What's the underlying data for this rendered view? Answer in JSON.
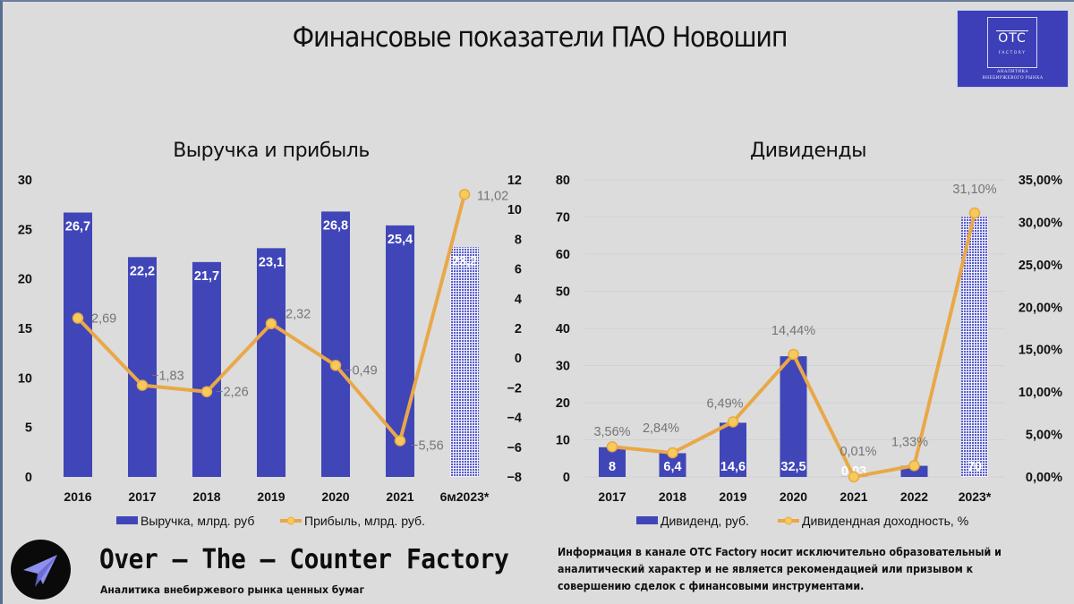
{
  "header": {
    "title": "Финансовые показатели ПАО Новошип",
    "logo": {
      "mark": "OTC",
      "word": "FACTORY",
      "subtitle_line1": "АНАЛИТИКА",
      "subtitle_line2": "ВНЕБИРЖЕВОГО РЫНКА",
      "bg_color": "#3d3fb8"
    }
  },
  "colors": {
    "bar": "#4046b8",
    "bar_forecast_pattern": "#5a5fc4",
    "line": "#e9a848",
    "marker_fill": "#f7cb5a",
    "data_label_line": "#757575",
    "data_label_bar": "#ffffff",
    "background": "#dcdcdc"
  },
  "chart_data": [
    {
      "type": "bar+line",
      "title": "Выручка и прибыль",
      "categories": [
        "2016",
        "2017",
        "2018",
        "2019",
        "2020",
        "2021",
        "6м2023*"
      ],
      "series": [
        {
          "name": "Выручка, млрд. руб",
          "type": "bar",
          "axis": "left",
          "values": [
            26.7,
            22.2,
            21.7,
            23.1,
            26.8,
            25.4,
            23.2
          ],
          "labels": [
            "26,7",
            "22,2",
            "21,7",
            "23,1",
            "26,8",
            "25,4",
            "23,2"
          ],
          "patterned_last": true
        },
        {
          "name": "Прибыль, млрд. руб.",
          "type": "line",
          "axis": "right",
          "values": [
            2.69,
            -1.83,
            -2.26,
            2.32,
            -0.49,
            -5.56,
            11.02
          ],
          "labels": [
            "2,69",
            "−1,83",
            "−2,26",
            "2,32",
            "−0,49",
            "−5,56",
            "11,02"
          ]
        }
      ],
      "y_left": {
        "min": 0,
        "max": 30,
        "ticks": [
          "0",
          "5",
          "10",
          "15",
          "20",
          "25",
          "30"
        ]
      },
      "y_right": {
        "min": -8,
        "max": 12,
        "ticks": [
          "−8",
          "−6",
          "−4",
          "−2",
          "0",
          "2",
          "4",
          "6",
          "8",
          "10",
          "12"
        ]
      },
      "legend_position": "bottom",
      "grid": false
    },
    {
      "type": "bar+line",
      "title": "Дивиденды",
      "categories": [
        "2017",
        "2018",
        "2019",
        "2020",
        "2021",
        "2022",
        "2023*"
      ],
      "series": [
        {
          "name": "Дивиденд, руб.",
          "type": "bar",
          "axis": "left",
          "values": [
            8,
            6.4,
            14.6,
            32.5,
            0.03,
            3,
            70
          ],
          "labels": [
            "8",
            "6,4",
            "14,6",
            "32,5",
            "0,03",
            "3",
            "70"
          ],
          "patterned_last": true
        },
        {
          "name": "Дивидендная доходность, %",
          "type": "line",
          "axis": "right",
          "values": [
            3.56,
            2.84,
            6.49,
            14.44,
            0.01,
            1.33,
            31.1
          ],
          "labels": [
            "3,56%",
            "2,84%",
            "6,49%",
            "14,44%",
            "0,01%",
            "1,33%",
            "31,10%"
          ]
        }
      ],
      "y_left": {
        "min": 0,
        "max": 80,
        "ticks": [
          "0",
          "10",
          "20",
          "30",
          "40",
          "50",
          "60",
          "70",
          "80"
        ]
      },
      "y_right": {
        "min": 0,
        "max": 35,
        "ticks": [
          "0,00%",
          "5,00%",
          "10,00%",
          "15,00%",
          "20,00%",
          "25,00%",
          "30,00%",
          "35,00%"
        ]
      },
      "legend_position": "bottom",
      "grid": true
    }
  ],
  "footer": {
    "brand_title": "Over – The – Counter Factory",
    "brand_subtitle": "Аналитика внебиржевого рынка ценных бумаг",
    "disclaimer": "Информация в канале OTC Factory носит исключительно образовательный и аналитический характер и не является рекомендацией или призывом к совершению сделок с финансовыми инструментами."
  }
}
